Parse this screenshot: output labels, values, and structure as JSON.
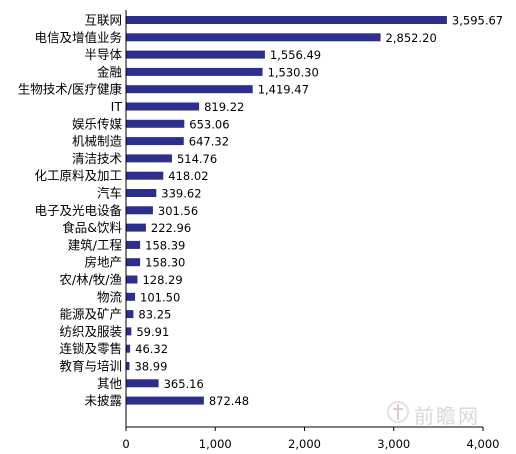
{
  "chart_data": {
    "type": "bar",
    "orientation": "horizontal",
    "categories": [
      "互联网",
      "电信及增值业务",
      "半导体",
      "金融",
      "生物技术/医疗健康",
      "IT",
      "娱乐传媒",
      "机械制造",
      "清洁技术",
      "化工原料及加工",
      "汽车",
      "电子及光电设备",
      "食品&饮料",
      "建筑/工程",
      "房地产",
      "农/林/牧/渔",
      "物流",
      "能源及矿产",
      "纺织及服装",
      "连锁及零售",
      "教育与培训",
      "其他",
      "未披露"
    ],
    "values": [
      3595.67,
      2852.2,
      1556.49,
      1530.3,
      1419.47,
      819.22,
      653.06,
      647.32,
      514.76,
      418.02,
      339.62,
      301.56,
      222.96,
      158.39,
      158.3,
      128.29,
      101.5,
      83.25,
      59.91,
      46.32,
      38.99,
      365.16,
      872.48
    ],
    "value_labels": [
      "3,595.67",
      "2,852.20",
      "1,556.49",
      "1,530.30",
      "1,419.47",
      "819.22",
      "653.06",
      "647.32",
      "514.76",
      "418.02",
      "339.62",
      "301.56",
      "222.96",
      "158.39",
      "158.30",
      "128.29",
      "101.50",
      "83.25",
      "59.91",
      "46.32",
      "38.99",
      "365.16",
      "872.48"
    ],
    "xlim": [
      0,
      4000
    ],
    "x_ticks": [
      0,
      1000,
      2000,
      3000,
      4000
    ],
    "x_tick_labels": [
      "0",
      "1,000",
      "2,000",
      "3,000",
      "4,000"
    ],
    "title": "",
    "xlabel": "",
    "ylabel": "",
    "grid": false,
    "legend": "none",
    "bar_color": "#2e2e8c"
  },
  "watermark": {
    "text": "前瞻网",
    "icon": "qianzhan-logo-icon"
  }
}
